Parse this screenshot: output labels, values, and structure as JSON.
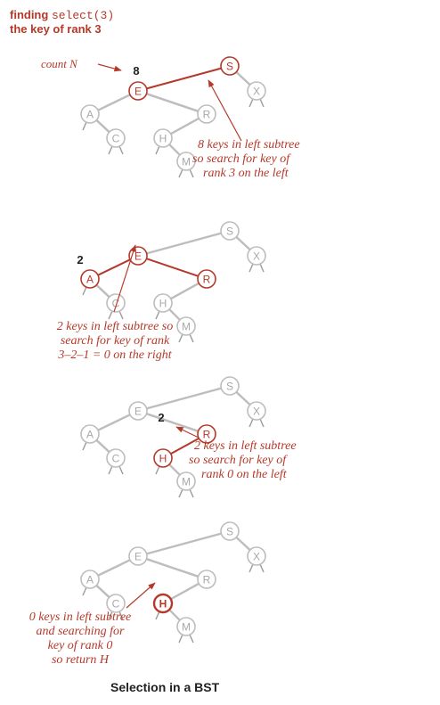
{
  "header": {
    "line1_prefix": "finding ",
    "line1_code": "select(3)",
    "line2": "the key of rank 3"
  },
  "colors": {
    "accent": "#b5392a",
    "gray": "#bdbdbd",
    "dark_gray": "#9a9a9a",
    "text": "#222222"
  },
  "panels": [
    {
      "nodes": [
        {
          "key": "S",
          "state": "active"
        },
        {
          "key": "E",
          "state": "active"
        },
        {
          "key": "X",
          "state": "gray"
        },
        {
          "key": "A",
          "state": "gray"
        },
        {
          "key": "R",
          "state": "gray"
        },
        {
          "key": "C",
          "state": "gray"
        },
        {
          "key": "H",
          "state": "gray"
        },
        {
          "key": "M",
          "state": "gray"
        }
      ],
      "count_label": "count N",
      "count_value": "8",
      "note": [
        "8 keys in left subtree",
        "so search for key of",
        "rank 3 on the left"
      ]
    },
    {
      "nodes": [
        {
          "key": "S",
          "state": "gray"
        },
        {
          "key": "E",
          "state": "active"
        },
        {
          "key": "X",
          "state": "gray"
        },
        {
          "key": "A",
          "state": "active"
        },
        {
          "key": "R",
          "state": "active"
        },
        {
          "key": "C",
          "state": "gray"
        },
        {
          "key": "H",
          "state": "gray"
        },
        {
          "key": "M",
          "state": "gray"
        }
      ],
      "count_value": "2",
      "note": [
        "2 keys in left subtree so",
        "search for key of rank",
        "3–2–1  =  0 on the right"
      ]
    },
    {
      "nodes": [
        {
          "key": "S",
          "state": "gray"
        },
        {
          "key": "E",
          "state": "gray"
        },
        {
          "key": "X",
          "state": "gray"
        },
        {
          "key": "A",
          "state": "gray"
        },
        {
          "key": "R",
          "state": "active"
        },
        {
          "key": "C",
          "state": "gray"
        },
        {
          "key": "H",
          "state": "active"
        },
        {
          "key": "M",
          "state": "gray"
        }
      ],
      "count_value": "2",
      "note": [
        "2 keys in left subtree",
        "so search for key of",
        "rank 0 on the left"
      ]
    },
    {
      "nodes": [
        {
          "key": "S",
          "state": "gray"
        },
        {
          "key": "E",
          "state": "gray"
        },
        {
          "key": "X",
          "state": "gray"
        },
        {
          "key": "A",
          "state": "gray"
        },
        {
          "key": "R",
          "state": "gray"
        },
        {
          "key": "C",
          "state": "gray"
        },
        {
          "key": "H",
          "state": "found"
        },
        {
          "key": "M",
          "state": "gray"
        }
      ],
      "note": [
        "0 keys in left subtree",
        "and searching for",
        "key of rank 0",
        "so return H"
      ]
    }
  ],
  "caption": "Selection in a BST"
}
